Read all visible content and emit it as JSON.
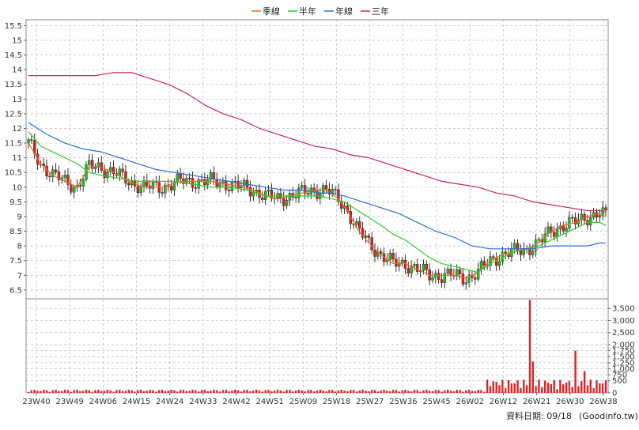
{
  "chart_data": {
    "type": "line",
    "legend": {
      "placement": "top-center",
      "items": [
        {
          "label": "季線",
          "color": "#e07020"
        },
        {
          "label": "半年",
          "color": "#2ecc2e"
        },
        {
          "label": "年線",
          "color": "#2a6ed8"
        },
        {
          "label": "三年",
          "color": "#cc2266"
        }
      ]
    },
    "price_axis": {
      "ylim": [
        6.2,
        15.7
      ],
      "ticks": [
        "6.5",
        "7",
        "7.5",
        "8",
        "8.5",
        "9",
        "9.5",
        "10",
        "10.5",
        "11",
        "11.5",
        "12",
        "12.5",
        "13",
        "13.5",
        "14",
        "14.5",
        "15",
        "15.5"
      ],
      "grid": true
    },
    "volume_axis": {
      "ylim": [
        0,
        3900
      ],
      "ticks": [
        "0",
        "500",
        "750",
        "1,000",
        "1,250",
        "1,500",
        "1,750",
        "2,000",
        "2,500",
        "3,000",
        "3,500"
      ],
      "grid": true
    },
    "x_ticks": [
      "23W40",
      "23W49",
      "24W06",
      "24W15",
      "24W24",
      "24W33",
      "24W42",
      "24W51",
      "25W09",
      "25W18",
      "25W27",
      "25W36",
      "25W45",
      "26W02",
      "26W12",
      "26W21",
      "26W30",
      "26W38"
    ],
    "candle_colors": {
      "up": "#22bb22",
      "down": "#dd2222",
      "wick": "#000000"
    },
    "volume_color": "#dd2222",
    "series": [
      {
        "name": "季線",
        "color": "#e07020",
        "points": [
          [
            0,
            11.5
          ],
          [
            4,
            10.8
          ],
          [
            8,
            10.4
          ],
          [
            12,
            10.2
          ],
          [
            16,
            10.0
          ],
          [
            20,
            10.7
          ],
          [
            23,
            10.7
          ],
          [
            28,
            10.5
          ],
          [
            33,
            10.2
          ],
          [
            38,
            10.0
          ],
          [
            44,
            10.0
          ],
          [
            50,
            10.2
          ],
          [
            55,
            10.2
          ],
          [
            60,
            10.2
          ],
          [
            66,
            10.1
          ],
          [
            70,
            10.0
          ],
          [
            74,
            9.9
          ],
          [
            78,
            9.7
          ],
          [
            82,
            9.6
          ],
          [
            86,
            9.7
          ],
          [
            90,
            9.8
          ],
          [
            94,
            9.9
          ],
          [
            98,
            9.9
          ],
          [
            102,
            9.6
          ],
          [
            105,
            9.2
          ],
          [
            108,
            8.6
          ],
          [
            112,
            8.1
          ],
          [
            116,
            7.7
          ],
          [
            120,
            7.4
          ],
          [
            124,
            7.4
          ],
          [
            128,
            7.2
          ],
          [
            132,
            7.0
          ],
          [
            136,
            7.0
          ],
          [
            140,
            7.0
          ],
          [
            144,
            6.9
          ],
          [
            148,
            7.1
          ],
          [
            152,
            7.5
          ],
          [
            156,
            7.7
          ],
          [
            160,
            7.8
          ],
          [
            164,
            7.9
          ],
          [
            168,
            8.1
          ],
          [
            172,
            8.5
          ],
          [
            176,
            8.7
          ],
          [
            180,
            8.8
          ],
          [
            184,
            9.0
          ],
          [
            188,
            9.1
          ],
          [
            190,
            9.0
          ]
        ]
      },
      {
        "name": "半年",
        "color": "#2ecc2e",
        "points": [
          [
            0,
            11.9
          ],
          [
            4,
            11.4
          ],
          [
            8,
            11.2
          ],
          [
            12,
            11.0
          ],
          [
            16,
            10.8
          ],
          [
            20,
            10.5
          ],
          [
            24,
            10.4
          ],
          [
            30,
            10.3
          ],
          [
            36,
            10.2
          ],
          [
            42,
            10.2
          ],
          [
            48,
            10.2
          ],
          [
            54,
            10.1
          ],
          [
            60,
            10.0
          ],
          [
            66,
            10.0
          ],
          [
            72,
            9.9
          ],
          [
            78,
            9.7
          ],
          [
            84,
            9.7
          ],
          [
            90,
            9.7
          ],
          [
            96,
            9.7
          ],
          [
            100,
            9.6
          ],
          [
            104,
            9.5
          ],
          [
            110,
            9.1
          ],
          [
            116,
            8.7
          ],
          [
            120,
            8.4
          ],
          [
            124,
            8.2
          ],
          [
            128,
            7.9
          ],
          [
            132,
            7.6
          ],
          [
            136,
            7.4
          ],
          [
            140,
            7.3
          ],
          [
            144,
            7.2
          ],
          [
            148,
            7.1
          ],
          [
            152,
            7.4
          ],
          [
            156,
            7.6
          ],
          [
            160,
            7.8
          ],
          [
            164,
            7.9
          ],
          [
            168,
            8.0
          ],
          [
            172,
            8.2
          ],
          [
            176,
            8.4
          ],
          [
            180,
            8.6
          ],
          [
            184,
            8.8
          ],
          [
            188,
            8.8
          ],
          [
            190,
            8.7
          ]
        ]
      },
      {
        "name": "年線",
        "color": "#2a6ed8",
        "points": [
          [
            0,
            12.2
          ],
          [
            6,
            11.8
          ],
          [
            12,
            11.5
          ],
          [
            18,
            11.3
          ],
          [
            24,
            11.2
          ],
          [
            30,
            11.0
          ],
          [
            36,
            10.8
          ],
          [
            42,
            10.6
          ],
          [
            48,
            10.5
          ],
          [
            54,
            10.4
          ],
          [
            60,
            10.3
          ],
          [
            66,
            10.2
          ],
          [
            72,
            10.1
          ],
          [
            78,
            10.0
          ],
          [
            84,
            9.9
          ],
          [
            90,
            9.9
          ],
          [
            96,
            9.8
          ],
          [
            100,
            9.8
          ],
          [
            104,
            9.7
          ],
          [
            110,
            9.5
          ],
          [
            116,
            9.3
          ],
          [
            122,
            9.1
          ],
          [
            128,
            8.8
          ],
          [
            134,
            8.5
          ],
          [
            140,
            8.3
          ],
          [
            146,
            8.0
          ],
          [
            152,
            7.9
          ],
          [
            156,
            7.9
          ],
          [
            160,
            7.9
          ],
          [
            166,
            7.9
          ],
          [
            172,
            8.0
          ],
          [
            178,
            8.0
          ],
          [
            184,
            8.0
          ],
          [
            188,
            8.1
          ],
          [
            190,
            8.1
          ]
        ]
      },
      {
        "name": "三年",
        "color": "#cc2266",
        "points": [
          [
            0,
            13.8
          ],
          [
            8,
            13.8
          ],
          [
            16,
            13.8
          ],
          [
            22,
            13.8
          ],
          [
            28,
            13.9
          ],
          [
            34,
            13.9
          ],
          [
            40,
            13.7
          ],
          [
            46,
            13.5
          ],
          [
            52,
            13.2
          ],
          [
            58,
            12.8
          ],
          [
            64,
            12.5
          ],
          [
            70,
            12.3
          ],
          [
            76,
            12.0
          ],
          [
            82,
            11.8
          ],
          [
            88,
            11.6
          ],
          [
            94,
            11.4
          ],
          [
            100,
            11.3
          ],
          [
            106,
            11.1
          ],
          [
            112,
            11.0
          ],
          [
            118,
            10.8
          ],
          [
            124,
            10.6
          ],
          [
            130,
            10.4
          ],
          [
            136,
            10.2
          ],
          [
            142,
            10.1
          ],
          [
            148,
            10.0
          ],
          [
            154,
            9.8
          ],
          [
            160,
            9.7
          ],
          [
            166,
            9.5
          ],
          [
            172,
            9.4
          ],
          [
            178,
            9.3
          ],
          [
            184,
            9.2
          ],
          [
            188,
            9.2
          ],
          [
            190,
            9.15
          ]
        ]
      }
    ]
  },
  "footer": {
    "date_label": "資料日期: 09/18",
    "source": "(Goodinfo.tw)"
  }
}
